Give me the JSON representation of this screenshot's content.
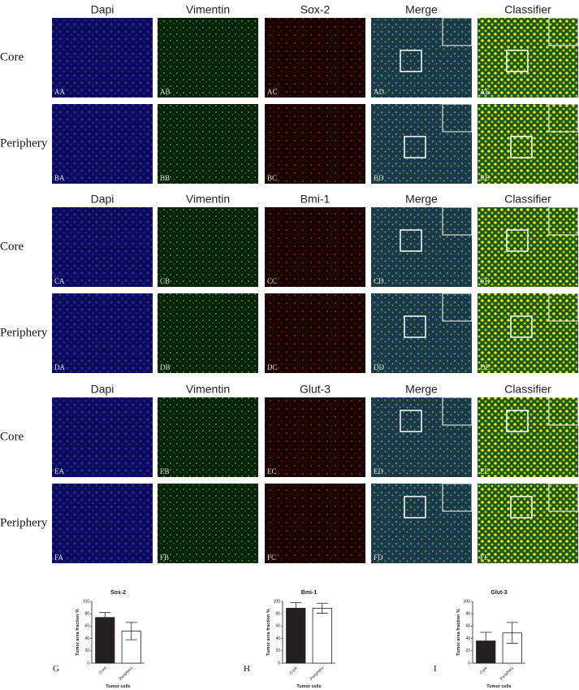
{
  "blocks": [
    {
      "headers": [
        "Dapi",
        "Vimentin",
        "Sox-2",
        "Merge",
        "Classifier"
      ],
      "rows": [
        {
          "label": "Core",
          "panels": [
            "AA",
            "AB",
            "AC",
            "AD",
            "AE"
          ]
        },
        {
          "label": "Periphery",
          "panels": [
            "BA",
            "BB",
            "BC",
            "BD",
            "BE"
          ]
        }
      ]
    },
    {
      "headers": [
        "Dapi",
        "Vimentin",
        "Bmi-1",
        "Merge",
        "Classifier"
      ],
      "rows": [
        {
          "label": "Core",
          "panels": [
            "CA",
            "CB",
            "CC",
            "CD",
            "CE"
          ]
        },
        {
          "label": "Periphery",
          "panels": [
            "DA",
            "DB",
            "DC",
            "DD",
            "DE"
          ]
        }
      ]
    },
    {
      "headers": [
        "Dapi",
        "Vimentin",
        "Glut-3",
        "Merge",
        "Classifier"
      ],
      "rows": [
        {
          "label": "Core",
          "panels": [
            "EA",
            "EB",
            "EC",
            "ED",
            "EE"
          ]
        },
        {
          "label": "Periphery",
          "panels": [
            "FA",
            "FB",
            "FC",
            "FD",
            "FE"
          ]
        }
      ]
    }
  ],
  "chart_data": [
    {
      "type": "bar",
      "title": "Sox-2",
      "panel_label": "G",
      "categories": [
        "Core",
        "Periphery"
      ],
      "values": [
        74,
        52
      ],
      "errors": [
        8,
        14
      ],
      "colors": [
        "#231f20",
        "#ffffff"
      ],
      "ylim": [
        0,
        100
      ],
      "yticks": [
        0,
        20,
        40,
        60,
        80,
        100
      ],
      "y_label": "Tumor area fraction %",
      "x_label": "Tumor cells"
    },
    {
      "type": "bar",
      "title": "Bmi-1",
      "panel_label": "H",
      "categories": [
        "Core",
        "Periphery"
      ],
      "values": [
        89,
        89
      ],
      "errors": [
        9,
        8
      ],
      "colors": [
        "#231f20",
        "#ffffff"
      ],
      "ylim": [
        0,
        100
      ],
      "yticks": [
        0,
        20,
        40,
        60,
        80,
        100
      ],
      "y_label": "Tumor area fraction %",
      "x_label": "Tumor cells"
    },
    {
      "type": "bar",
      "title": "Glut-3",
      "panel_label": "I",
      "categories": [
        "Core",
        "Periphery"
      ],
      "values": [
        36,
        49
      ],
      "errors": [
        14,
        17
      ],
      "colors": [
        "#231f20",
        "#ffffff"
      ],
      "ylim": [
        0,
        100
      ],
      "yticks": [
        0,
        20,
        40,
        60,
        80,
        100
      ],
      "y_label": "Tumor area fraction %",
      "x_label": "Tumor cells"
    }
  ]
}
